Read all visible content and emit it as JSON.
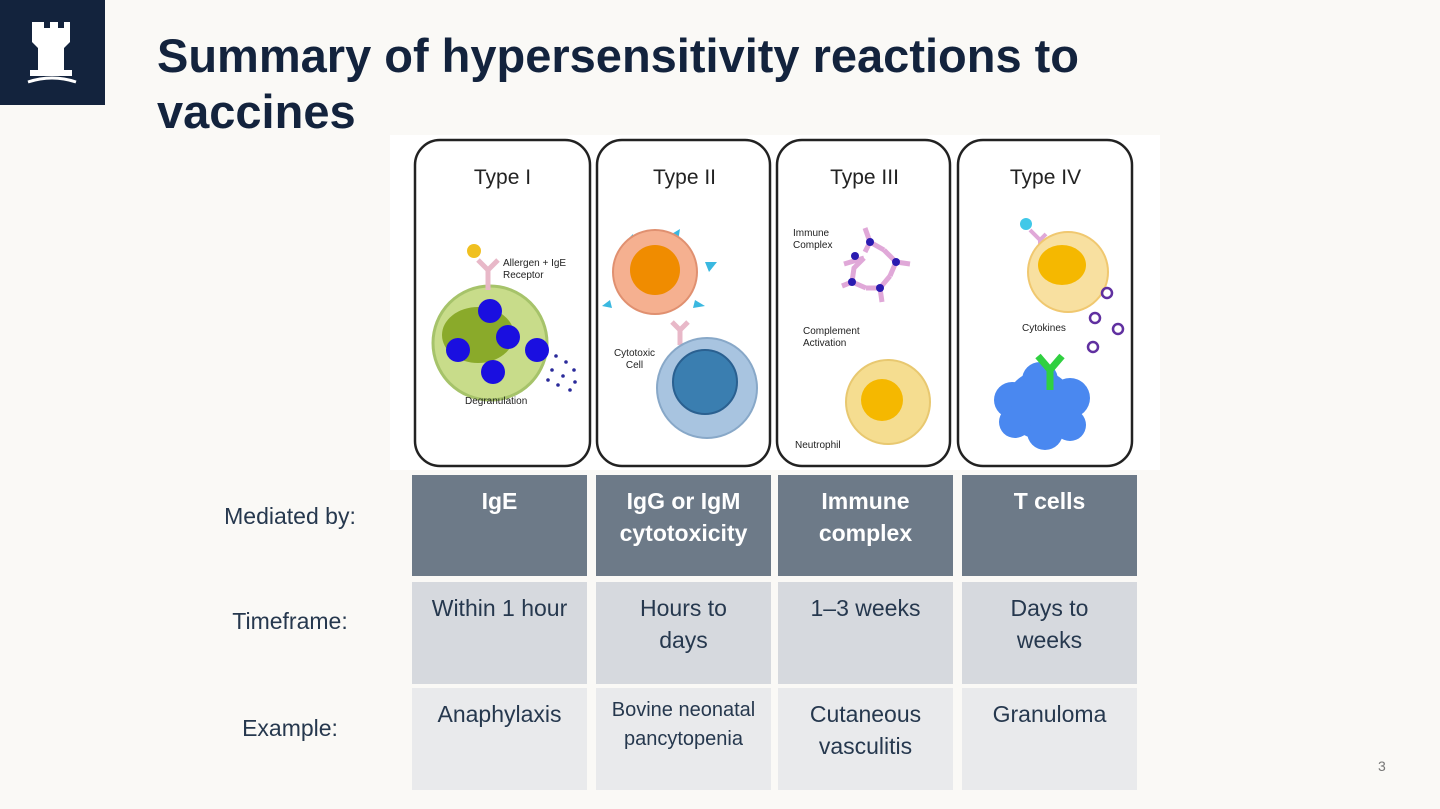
{
  "header": {
    "title": "Summary of hypersensitivity reactions to vaccines"
  },
  "slide_number": "3",
  "panels": [
    {
      "title": "Type I",
      "labels": [
        "Allergen + IgE Receptor",
        "Degranulation"
      ]
    },
    {
      "title": "Type II",
      "labels": [
        "Cytotoxic Cell"
      ]
    },
    {
      "title": "Type III",
      "labels": [
        "Immune Complex",
        "Complement Activation",
        "Neutrophil"
      ]
    },
    {
      "title": "Type IV",
      "labels": [
        "Cytokines"
      ]
    }
  ],
  "table": {
    "row_labels": [
      "Mediated by:",
      "Timeframe:",
      "Example:"
    ],
    "rows": [
      [
        "IgE",
        "IgG or IgM cytotoxicity",
        "Immune complex",
        "T cells"
      ],
      [
        "Within 1 hour",
        "Hours to days",
        "1–3 weeks",
        "Days to weeks"
      ],
      [
        "Anaphylaxis",
        "Bovine neonatal pancytopenia",
        "Cutaneous vasculitis",
        "Granuloma"
      ]
    ]
  }
}
